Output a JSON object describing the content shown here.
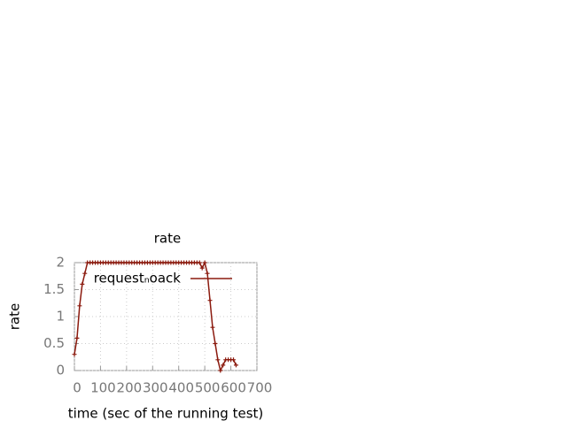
{
  "chart_data": {
    "type": "line",
    "title": "rate",
    "x_label": "time (sec of the running test)",
    "y_label": "rate",
    "x": [
      0,
      10,
      20,
      30,
      40,
      50,
      60,
      70,
      80,
      90,
      100,
      110,
      120,
      130,
      140,
      150,
      160,
      170,
      180,
      190,
      200,
      210,
      220,
      230,
      240,
      250,
      260,
      270,
      280,
      290,
      300,
      310,
      320,
      330,
      340,
      350,
      360,
      370,
      380,
      390,
      400,
      410,
      420,
      430,
      440,
      450,
      460,
      470,
      480,
      490,
      500,
      510,
      520,
      530,
      540,
      550,
      560,
      570,
      580,
      590,
      600,
      610,
      620
    ],
    "series": [
      {
        "name": "requestₙoack",
        "color": "#8b1a0e",
        "values": [
          0.3,
          0.6,
          1.2,
          1.6,
          1.8,
          2,
          2,
          2,
          2,
          2,
          2,
          2,
          2,
          2,
          2,
          2,
          2,
          2,
          2,
          2,
          2,
          2,
          2,
          2,
          2,
          2,
          2,
          2,
          2,
          2,
          2,
          2,
          2,
          2,
          2,
          2,
          2,
          2,
          2,
          2,
          2,
          2,
          2,
          2,
          2,
          2,
          2,
          2,
          2,
          1.9,
          2,
          1.8,
          1.3,
          0.8,
          0.5,
          0.2,
          0,
          0.1,
          0.2,
          0.2,
          0.2,
          0.2,
          0.1
        ]
      }
    ],
    "xlim": [
      0,
      700
    ],
    "xticks": [
      0,
      100,
      200,
      300,
      400,
      500,
      600,
      700
    ],
    "ylim": [
      0,
      2
    ],
    "yticks": [
      0,
      0.5,
      1,
      1.5,
      2
    ],
    "grid": true,
    "legend": "top-right"
  }
}
